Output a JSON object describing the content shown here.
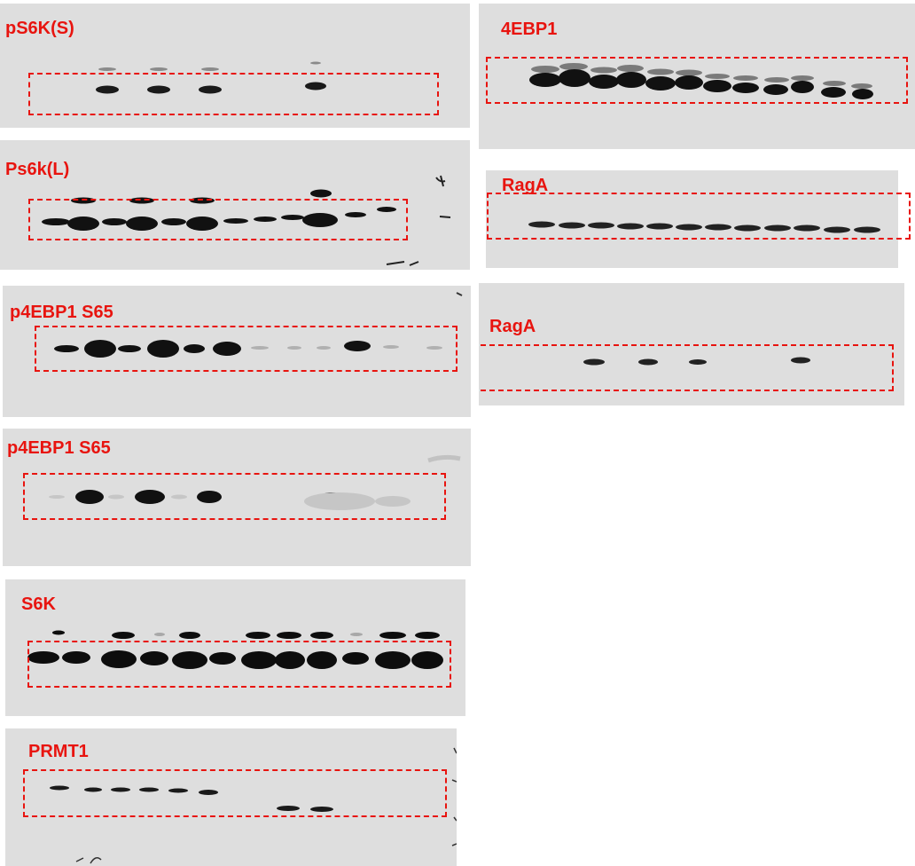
{
  "accent_color": "#e8140f",
  "panels": [
    {
      "id": "pS6K-S",
      "label": "pS6K(S)"
    },
    {
      "id": "Ps6k-L",
      "label": "Ps6k(L)"
    },
    {
      "id": "p4EBP1-S65-a",
      "label": "p4EBP1 S65"
    },
    {
      "id": "p4EBP1-S65-b",
      "label": "p4EBP1 S65"
    },
    {
      "id": "S6K",
      "label": "S6K"
    },
    {
      "id": "PRMT1",
      "label": "PRMT1"
    },
    {
      "id": "4EBP1",
      "label": "4EBP1"
    },
    {
      "id": "RagA-a",
      "label": "RagA"
    },
    {
      "id": "RagA-b",
      "label": "RagA"
    }
  ]
}
